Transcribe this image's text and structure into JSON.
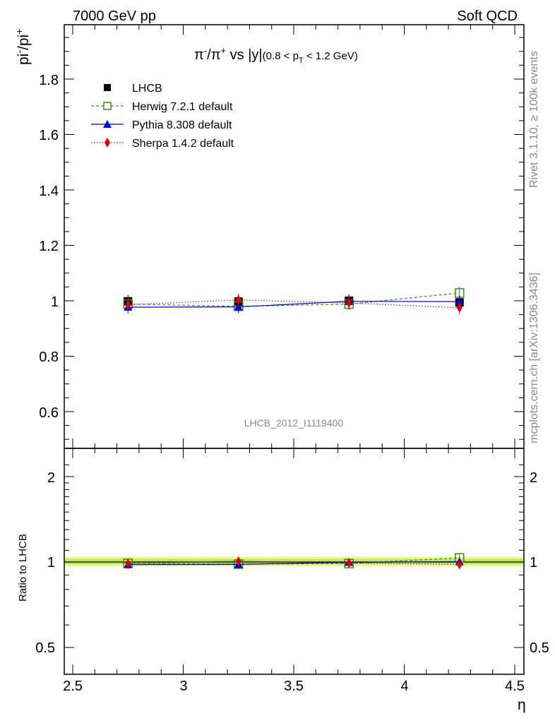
{
  "header": {
    "left": "7000 GeV pp",
    "right": "Soft QCD"
  },
  "side_labels": {
    "rivet": "Rivet 3.1.10, ≥ 100k events",
    "mcplots": "mcplots.cern.ch [arXiv:1306.3436]"
  },
  "plot_title": {
    "main": "π⁻/π⁺ vs |y|",
    "sub": "(0.8 < p_T < 1.2 GeV)"
  },
  "watermark": "LHCB_2012_I1119400",
  "chart_data": [
    {
      "type": "line",
      "ylabel": "pi⁻/pi⁺",
      "xlim": [
        2.5,
        4.5
      ],
      "ylim": [
        0.5,
        2.0
      ],
      "x": [
        2.75,
        3.25,
        3.75,
        4.25
      ],
      "yticks": [
        0.6,
        0.8,
        1,
        1.2,
        1.4,
        1.6,
        1.8
      ],
      "series": [
        {
          "name": "LHCB",
          "values": [
            0.998,
            0.997,
            1.0,
            0.994
          ],
          "color": "#000000",
          "marker": "filled-square",
          "line": "none"
        },
        {
          "name": "Herwig 7.2.1 default",
          "values": [
            0.988,
            0.98,
            0.988,
            1.028
          ],
          "color": "#3a8a1e",
          "marker": "open-square",
          "line": "dashed"
        },
        {
          "name": "Pythia 8.308 default",
          "values": [
            0.977,
            0.978,
            0.998,
            0.997
          ],
          "color": "#0000cc",
          "marker": "triangle",
          "line": "solid"
        },
        {
          "name": "Sherpa 1.4.2 default",
          "values": [
            0.986,
            1.003,
            0.992,
            0.975
          ],
          "color": "#e00000",
          "marker": "diamond",
          "line": "dotted"
        }
      ],
      "legend": "top-left"
    },
    {
      "type": "line",
      "ylabel": "Ratio to LHCB",
      "xlabel": "η",
      "xlim": [
        2.5,
        4.5
      ],
      "xticks": [
        "2.5",
        "3",
        "3.5",
        "4",
        "4.5"
      ],
      "ylim": [
        0.4,
        2.3
      ],
      "scale": "log",
      "yticks": [
        "0.5",
        "1",
        "2"
      ],
      "x": [
        2.75,
        3.25,
        3.75,
        4.25
      ],
      "series": [
        {
          "name": "Herwig 7.2.1 default",
          "values": [
            0.99,
            0.983,
            0.988,
            1.034
          ],
          "color": "#3a8a1e"
        },
        {
          "name": "Pythia 8.308 default",
          "values": [
            0.979,
            0.981,
            0.998,
            1.003
          ],
          "color": "#0000cc"
        },
        {
          "name": "Sherpa 1.4.2 default",
          "values": [
            0.988,
            1.006,
            0.992,
            0.981
          ],
          "color": "#e00000"
        }
      ]
    }
  ]
}
